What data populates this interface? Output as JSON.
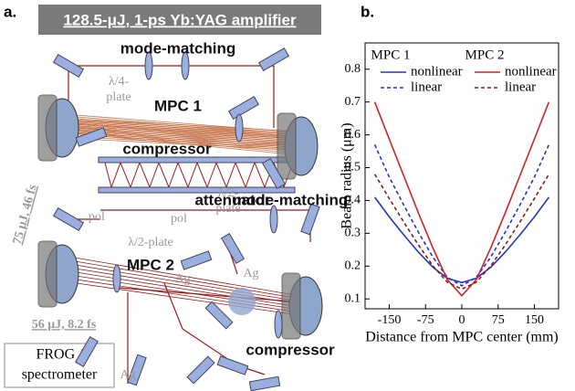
{
  "diagram": {
    "panel_label": "a.",
    "source": "128.5-μJ, 1-ps Yb:YAG amplifier",
    "labels": [
      {
        "text": "mode-matching"
      },
      {
        "lines": [
          "λ/4-",
          "plate"
        ]
      },
      {
        "text": "MPC 1"
      },
      {
        "text": "compressor"
      },
      {
        "lines": [
          "λ/2-",
          "plate"
        ]
      },
      {
        "text": "75 μJ, 46 fs"
      },
      {
        "text": "attenuator"
      },
      {
        "text": "mode-matching"
      },
      {
        "text": "pol"
      },
      {
        "text": "pol"
      },
      {
        "text": "λ/2-plate"
      },
      {
        "text": "MPC 2"
      },
      {
        "text": "Ag"
      },
      {
        "text": "Ag"
      },
      {
        "text": "56 μJ, 8.2 fs"
      },
      {
        "text": "Ag"
      },
      {
        "text": "compressor"
      }
    ],
    "output": [
      "FROG /",
      "spectrometer"
    ]
  },
  "chart_data": {
    "type": "line",
    "panel_label": "b.",
    "x_label": "Distance from MPC center (mm)",
    "y_label": "Beam radius (μm)",
    "legend_titles": [
      "MPC 1",
      "MPC 2"
    ],
    "x": [
      -180,
      -150,
      -120,
      -90,
      -60,
      -30,
      0,
      30,
      60,
      90,
      120,
      150,
      180
    ],
    "series": [
      {
        "name": "nonlinear",
        "color": "#2233cc",
        "dash": false,
        "values": [
          0.41,
          0.35,
          0.295,
          0.243,
          0.197,
          0.163,
          0.15,
          0.163,
          0.197,
          0.243,
          0.295,
          0.35,
          0.41
        ]
      },
      {
        "name": "linear",
        "color": "#2233cc",
        "dash": true,
        "values": [
          0.57,
          0.471,
          0.386,
          0.304,
          0.228,
          0.166,
          0.14,
          0.166,
          0.228,
          0.304,
          0.386,
          0.471,
          0.57
        ]
      },
      {
        "name": "nonlinear",
        "color": "#d42020",
        "dash": false,
        "values": [
          0.7,
          0.587,
          0.475,
          0.363,
          0.256,
          0.159,
          0.11,
          0.159,
          0.256,
          0.363,
          0.475,
          0.587,
          0.7
        ]
      },
      {
        "name": "linear",
        "color": "#8b1a1a",
        "dash": true,
        "values": [
          0.48,
          0.406,
          0.334,
          0.265,
          0.201,
          0.151,
          0.13,
          0.151,
          0.201,
          0.265,
          0.334,
          0.406,
          0.48
        ]
      }
    ],
    "xlim": [
      -200,
      200
    ],
    "ylim": [
      0.07,
      0.88
    ],
    "xticks": [
      -150,
      -75,
      0,
      75,
      150
    ],
    "yticks": [
      0.1,
      0.2,
      0.3,
      0.4,
      0.5,
      0.6,
      0.7,
      0.8
    ]
  }
}
